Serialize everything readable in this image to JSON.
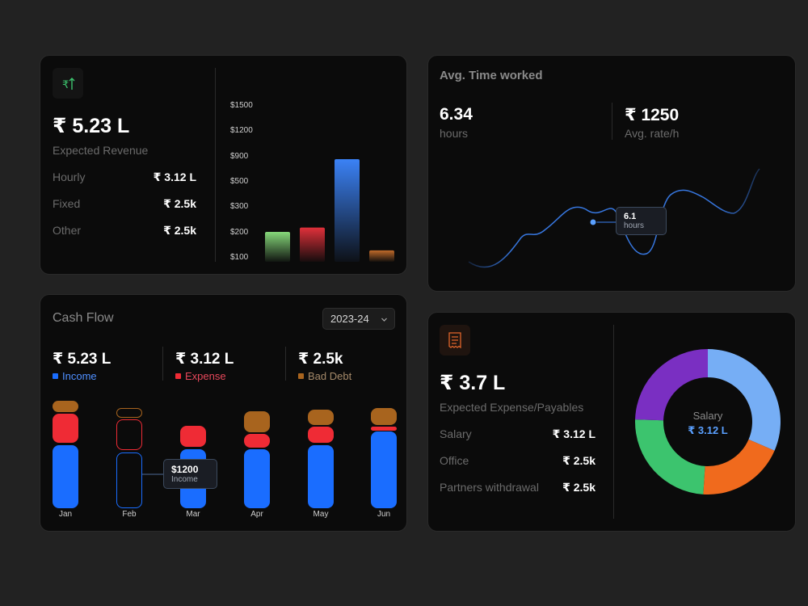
{
  "revenue": {
    "icon": "rupee-arrow-up-icon",
    "amount": "₹ 5.23 L",
    "label": "Expected Revenue",
    "rows": [
      {
        "label": "Hourly",
        "value": "₹ 3.12 L"
      },
      {
        "label": "Fixed",
        "value": "₹ 2.5k"
      },
      {
        "label": "Other",
        "value": "₹ 2.5k"
      }
    ],
    "chart_data": {
      "type": "bar",
      "y_ticks": [
        "$1500",
        "$1200",
        "$900",
        "$500",
        "$300",
        "$200",
        "$100"
      ],
      "values": [
        200,
        300,
        900,
        100
      ],
      "colors": [
        "#86d97a",
        "#e0303a",
        "#3b82f6",
        "#c06a2a"
      ]
    }
  },
  "time": {
    "title": "Avg. Time worked",
    "hours_value": "6.34",
    "hours_label": "hours",
    "rate_value": "₹ 1250",
    "rate_label": "Avg. rate/h",
    "tooltip_value": "6.1",
    "tooltip_label": "hours",
    "line_color": "#3b82f6"
  },
  "cashflow": {
    "title": "Cash Flow",
    "year_select": "2023-24",
    "stats": [
      {
        "value": "₹ 5.23 L",
        "label": "Income",
        "color": "#1a6dff"
      },
      {
        "value": "₹ 3.12 L",
        "label": "Expense",
        "color": "#ef2b35"
      },
      {
        "value": "₹ 2.5k",
        "label": "Bad Debt",
        "color": "#a8641e"
      }
    ],
    "tooltip_value": "$1200",
    "tooltip_label": "Income",
    "chart_data": {
      "type": "bar",
      "stacked": true,
      "categories": [
        "Jan",
        "Feb",
        "Mar",
        "Apr",
        "May",
        "Jun"
      ],
      "series": [
        {
          "name": "Income",
          "color": "#1a6dff"
        },
        {
          "name": "Expense",
          "color": "#ef2b35"
        },
        {
          "name": "Bad Debt",
          "color": "#a8641e"
        }
      ]
    }
  },
  "expense": {
    "icon": "receipt-icon",
    "amount": "₹ 3.7 L",
    "label": "Expected Expense/Payables",
    "rows": [
      {
        "label": "Salary",
        "value": "₹ 3.12 L"
      },
      {
        "label": "Office",
        "value": "₹ 2.5k"
      },
      {
        "label": "Partners withdrawal",
        "value": "₹ 2.5k"
      }
    ],
    "donut_label": "Salary",
    "donut_value": "₹ 3.12 L",
    "chart_data": {
      "type": "pie",
      "segments": [
        {
          "share": 0.315,
          "color": "#76aef5"
        },
        {
          "share": 0.195,
          "color": "#f06a1d"
        },
        {
          "share": 0.245,
          "color": "#3cc46e"
        },
        {
          "share": 0.245,
          "color": "#7a2fc2"
        }
      ]
    }
  }
}
